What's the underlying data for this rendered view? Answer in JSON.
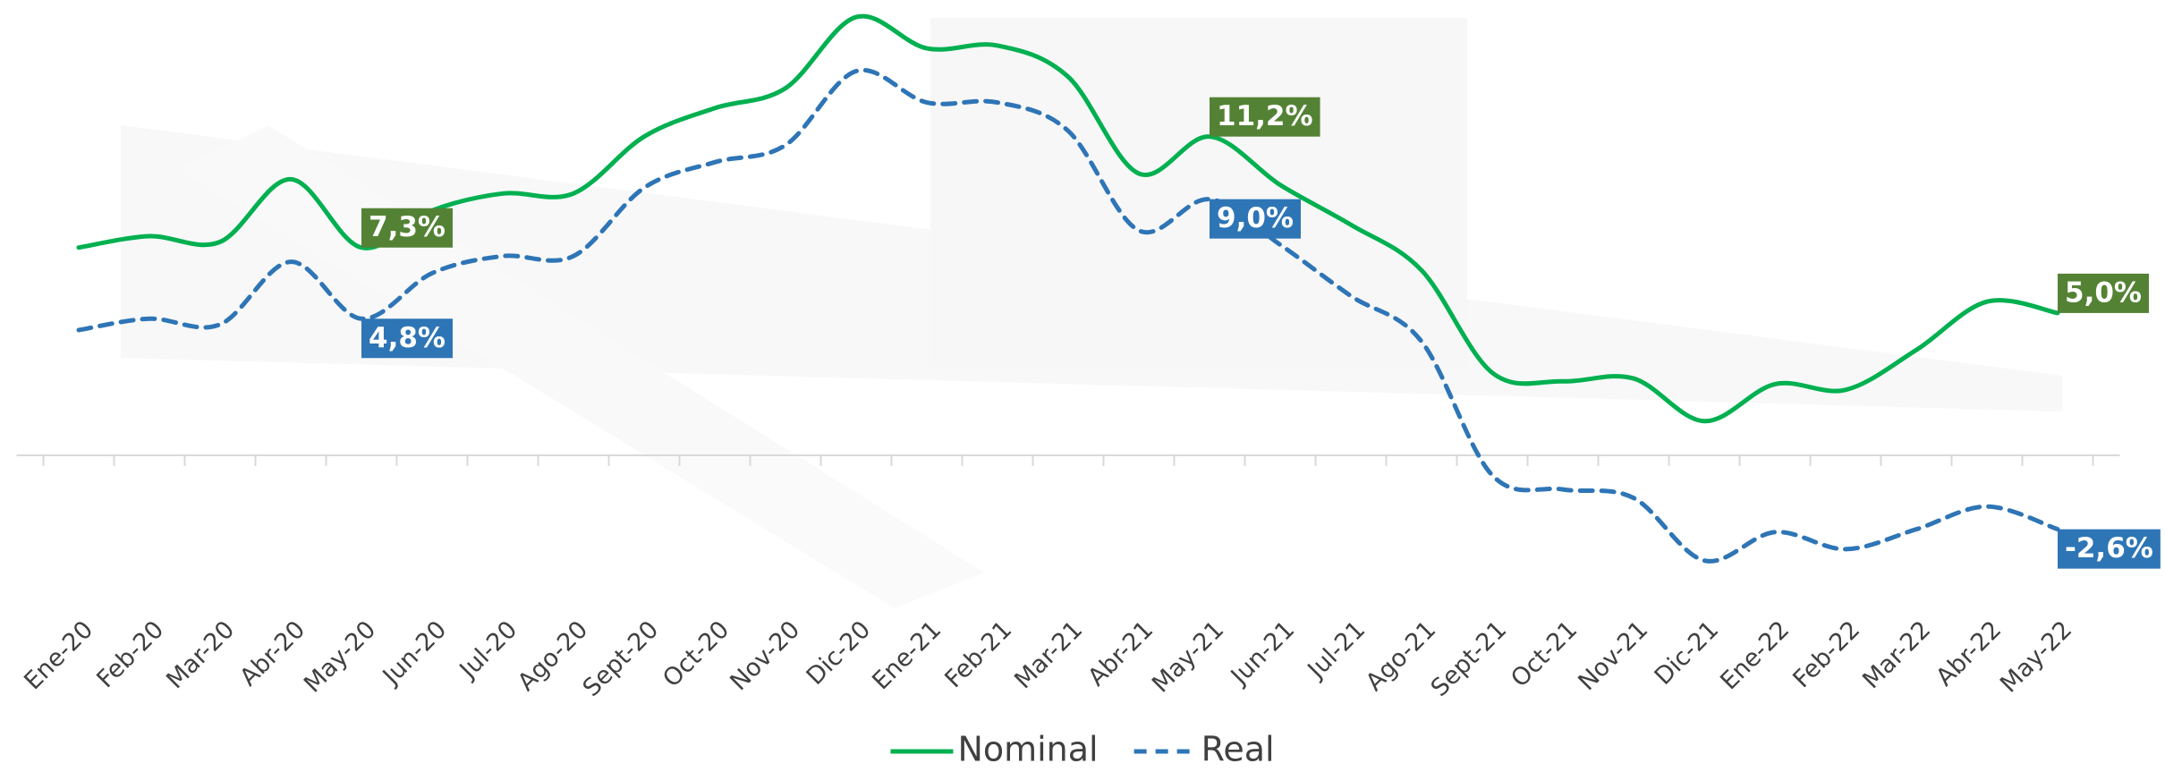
{
  "chart_data": {
    "type": "line",
    "categories": [
      "Ene-20",
      "Feb-20",
      "Mar-20",
      "Abr-20",
      "May-20",
      "Jun-20",
      "Jul-20",
      "Ago-20",
      "Sept-20",
      "Oct-20",
      "Nov-20",
      "Dic-20",
      "Ene-21",
      "Feb-21",
      "Mar-21",
      "Abr-21",
      "May-21",
      "Jun-21",
      "Jul-21",
      "Ago-21",
      "Sept-21",
      "Oct-21",
      "Nov-21",
      "Dic-21",
      "Ene-22",
      "Feb-22",
      "Mar-22",
      "Abr-22",
      "May-22"
    ],
    "series": [
      {
        "name": "Nominal",
        "color": "#00b050",
        "dashed": false,
        "values": [
          7.3,
          7.7,
          7.5,
          9.7,
          7.3,
          8.6,
          9.2,
          9.2,
          11.2,
          12.2,
          12.9,
          15.4,
          14.3,
          14.4,
          13.3,
          9.9,
          11.2,
          9.5,
          8.1,
          6.5,
          2.9,
          2.6,
          2.7,
          1.2,
          2.5,
          2.3,
          3.7,
          5.4,
          5.0
        ],
        "value_labels": [
          null,
          null,
          null,
          null,
          "7,3%",
          null,
          null,
          null,
          null,
          null,
          null,
          null,
          null,
          null,
          null,
          null,
          "11,2%",
          null,
          null,
          null,
          null,
          null,
          null,
          null,
          null,
          null,
          null,
          null,
          "5,0%"
        ],
        "label_color": "#548235"
      },
      {
        "name": "Real",
        "color": "#2e75b6",
        "dashed": true,
        "values": [
          4.4,
          4.8,
          4.6,
          6.8,
          4.8,
          6.4,
          7.0,
          7.0,
          9.4,
          10.3,
          10.9,
          13.5,
          12.4,
          12.4,
          11.4,
          7.9,
          9.0,
          7.4,
          5.6,
          4.0,
          -0.7,
          -1.2,
          -1.5,
          -3.7,
          -2.7,
          -3.3,
          -2.6,
          -1.8,
          -2.6
        ],
        "value_labels": [
          null,
          null,
          null,
          null,
          "4,8%",
          null,
          null,
          null,
          null,
          null,
          null,
          null,
          null,
          null,
          null,
          null,
          "9,0%",
          null,
          null,
          null,
          null,
          null,
          null,
          null,
          null,
          null,
          null,
          null,
          "-2,6%"
        ],
        "label_color": "#2e75b6"
      }
    ],
    "ylim": [
      -5,
      16
    ],
    "legend": "bottom"
  }
}
